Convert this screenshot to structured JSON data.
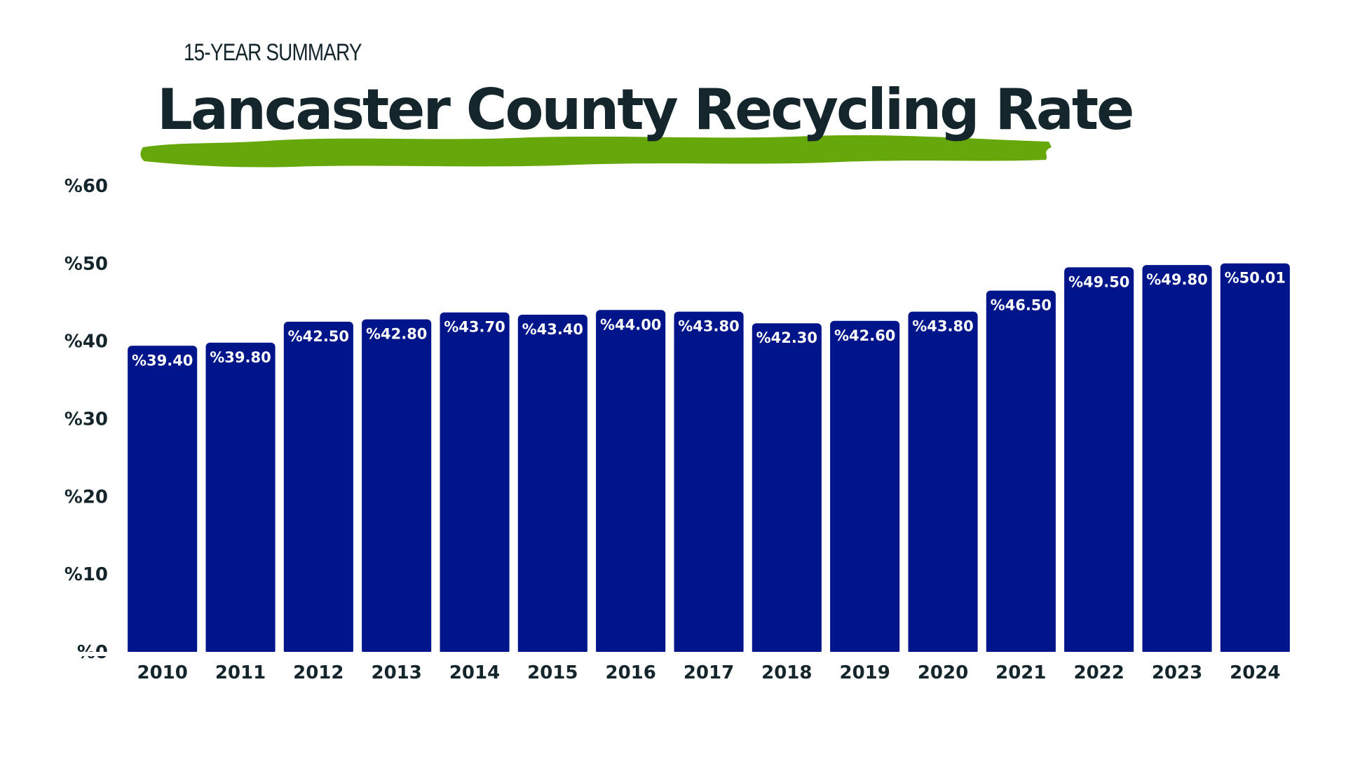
{
  "header": {
    "subtitle": "15-YEAR SUMMARY",
    "title": "Lancaster County Recycling Rate"
  },
  "colors": {
    "bar": "#00158a",
    "accent_brush": "#66a80a",
    "text": "#14262c"
  },
  "chart_data": {
    "type": "bar",
    "title": "Lancaster County Recycling Rate",
    "subtitle": "15-YEAR SUMMARY",
    "xlabel": "",
    "ylabel": "",
    "ylim": [
      0,
      60
    ],
    "grid": false,
    "yticks": [
      0,
      10,
      20,
      30,
      40,
      50,
      60
    ],
    "ytick_labels": [
      "%0",
      "%10",
      "%20",
      "%30",
      "%40",
      "%50",
      "%60"
    ],
    "categories": [
      "2010",
      "2011",
      "2012",
      "2013",
      "2014",
      "2015",
      "2016",
      "2017",
      "2018",
      "2019",
      "2020",
      "2021",
      "2022",
      "2023",
      "2024"
    ],
    "values": [
      39.4,
      39.8,
      42.5,
      42.8,
      43.7,
      43.4,
      44.0,
      43.8,
      42.3,
      42.6,
      43.8,
      46.5,
      49.5,
      49.8,
      50.01
    ],
    "value_labels": [
      "%39.40",
      "%39.80",
      "%42.50",
      "%42.80",
      "%43.70",
      "%43.40",
      "%44.00",
      "%43.80",
      "%42.30",
      "%42.60",
      "%43.80",
      "%46.50",
      "%49.50",
      "%49.80",
      "%50.01"
    ]
  }
}
